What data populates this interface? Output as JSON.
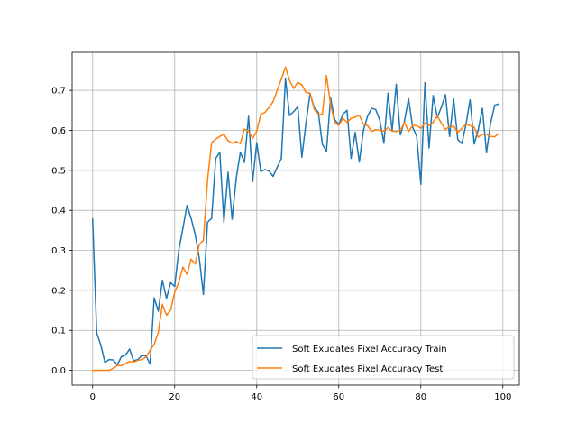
{
  "chart_data": {
    "type": "line",
    "title": "",
    "xlabel": "",
    "ylabel": "",
    "xlim": [
      -5,
      104
    ],
    "ylim": [
      -0.037,
      0.795
    ],
    "xticks": [
      0,
      20,
      40,
      60,
      80,
      100
    ],
    "yticks": [
      0.0,
      0.1,
      0.2,
      0.3,
      0.4,
      0.5,
      0.6,
      0.7
    ],
    "xtick_labels": [
      "0",
      "20",
      "40",
      "60",
      "80",
      "100"
    ],
    "ytick_labels": [
      "0.0",
      "0.1",
      "0.2",
      "0.3",
      "0.4",
      "0.5",
      "0.6",
      "0.7"
    ],
    "grid": true,
    "legend_position": "lower-right",
    "series": [
      {
        "name": "Soft Exudates Pixel Accuracy Train",
        "color": "#1f77b4",
        "x": [
          0,
          1,
          2,
          3,
          4,
          5,
          6,
          7,
          8,
          9,
          10,
          11,
          12,
          13,
          14,
          15,
          16,
          17,
          18,
          19,
          20,
          21,
          22,
          23,
          24,
          25,
          26,
          27,
          28,
          29,
          30,
          31,
          32,
          33,
          34,
          35,
          36,
          37,
          38,
          39,
          40,
          41,
          42,
          43,
          44,
          45,
          46,
          47,
          48,
          49,
          50,
          51,
          52,
          53,
          54,
          55,
          56,
          57,
          58,
          59,
          60,
          61,
          62,
          63,
          64,
          65,
          66,
          67,
          68,
          69,
          70,
          71,
          72,
          73,
          74,
          75,
          76,
          77,
          78,
          79,
          80,
          81,
          82,
          83,
          84,
          85,
          86,
          87,
          88,
          89,
          90,
          91,
          92,
          93,
          94,
          95,
          96,
          97,
          98,
          99
        ],
        "y": [
          0.378,
          0.093,
          0.063,
          0.02,
          0.027,
          0.026,
          0.014,
          0.034,
          0.038,
          0.053,
          0.024,
          0.027,
          0.037,
          0.036,
          0.016,
          0.181,
          0.148,
          0.225,
          0.18,
          0.219,
          0.21,
          0.301,
          0.355,
          0.412,
          0.38,
          0.34,
          0.28,
          0.19,
          0.37,
          0.38,
          0.53,
          0.545,
          0.37,
          0.495,
          0.378,
          0.48,
          0.545,
          0.52,
          0.635,
          0.472,
          0.569,
          0.497,
          0.502,
          0.498,
          0.485,
          0.508,
          0.53,
          0.729,
          0.637,
          0.647,
          0.659,
          0.533,
          0.618,
          0.692,
          0.657,
          0.645,
          0.565,
          0.548,
          0.681,
          0.627,
          0.614,
          0.64,
          0.65,
          0.53,
          0.595,
          0.521,
          0.6,
          0.635,
          0.655,
          0.652,
          0.625,
          0.568,
          0.693,
          0.6,
          0.715,
          0.589,
          0.623,
          0.679,
          0.608,
          0.585,
          0.465,
          0.719,
          0.556,
          0.687,
          0.632,
          0.658,
          0.689,
          0.585,
          0.678,
          0.577,
          0.567,
          0.615,
          0.676,
          0.566,
          0.602,
          0.655,
          0.544,
          0.618,
          0.663,
          0.666
        ]
      },
      {
        "name": "Soft Exudates Pixel Accuracy Test",
        "color": "#ff7f0e",
        "x": [
          0,
          1,
          2,
          3,
          4,
          5,
          6,
          7,
          8,
          9,
          10,
          11,
          12,
          13,
          14,
          15,
          16,
          17,
          18,
          19,
          20,
          21,
          22,
          23,
          24,
          25,
          26,
          27,
          28,
          29,
          30,
          31,
          32,
          33,
          34,
          35,
          36,
          37,
          38,
          39,
          40,
          41,
          42,
          43,
          44,
          45,
          46,
          47,
          48,
          49,
          50,
          51,
          52,
          53,
          54,
          55,
          56,
          57,
          58,
          59,
          60,
          61,
          62,
          63,
          64,
          65,
          66,
          67,
          68,
          69,
          70,
          71,
          72,
          73,
          74,
          75,
          76,
          77,
          78,
          79,
          80,
          81,
          82,
          83,
          84,
          85,
          86,
          87,
          88,
          89,
          90,
          91,
          92,
          93,
          94,
          95,
          96,
          97,
          98,
          99
        ],
        "y": [
          0.0,
          0.0,
          0.0,
          0.0,
          0.0,
          0.005,
          0.012,
          0.012,
          0.017,
          0.022,
          0.021,
          0.025,
          0.027,
          0.033,
          0.05,
          0.065,
          0.095,
          0.165,
          0.138,
          0.15,
          0.195,
          0.221,
          0.258,
          0.24,
          0.278,
          0.266,
          0.315,
          0.325,
          0.475,
          0.569,
          0.578,
          0.585,
          0.59,
          0.574,
          0.568,
          0.572,
          0.567,
          0.603,
          0.598,
          0.58,
          0.598,
          0.64,
          0.645,
          0.657,
          0.672,
          0.7,
          0.728,
          0.758,
          0.725,
          0.705,
          0.72,
          0.714,
          0.695,
          0.693,
          0.653,
          0.641,
          0.64,
          0.737,
          0.665,
          0.62,
          0.612,
          0.63,
          0.62,
          0.63,
          0.633,
          0.638,
          0.615,
          0.612,
          0.597,
          0.602,
          0.6,
          0.598,
          0.607,
          0.598,
          0.597,
          0.599,
          0.62,
          0.597,
          0.612,
          0.612,
          0.605,
          0.618,
          0.612,
          0.62,
          0.636,
          0.618,
          0.602,
          0.61,
          0.61,
          0.595,
          0.605,
          0.615,
          0.612,
          0.608,
          0.583,
          0.59,
          0.59,
          0.585,
          0.584,
          0.592
        ]
      }
    ]
  }
}
